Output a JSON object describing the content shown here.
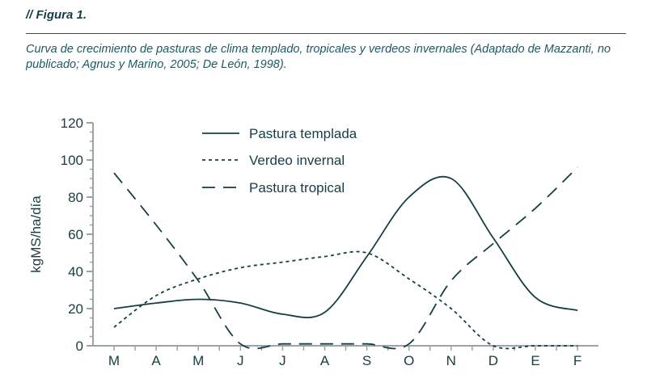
{
  "figure": {
    "label": "// Figura 1.",
    "caption": "Curva de crecimiento de pasturas de clima templado, tropicales y verdeos invernales (Adaptado de Mazzanti, no publicado; Agnus y Marino, 2005; De León, 1998)."
  },
  "chart_data": {
    "type": "line",
    "title": "",
    "xlabel": "",
    "ylabel": "kgMS/ha/día",
    "categories": [
      "M",
      "A",
      "M",
      "J",
      "J",
      "A",
      "S",
      "O",
      "N",
      "D",
      "E",
      "F"
    ],
    "ylim": [
      0,
      120
    ],
    "yticks": [
      0,
      20,
      40,
      60,
      80,
      100,
      120
    ],
    "grid": false,
    "legend": "top-center",
    "colors": {
      "line": "#163d45",
      "axis": "#9aa3a6"
    },
    "series": [
      {
        "name": "Pastura templada",
        "style": "solid",
        "values": [
          20,
          23,
          25,
          23,
          17,
          18,
          48,
          80,
          90,
          58,
          26,
          19
        ]
      },
      {
        "name": "Verdeo invernal",
        "style": "dotted",
        "values": [
          10,
          27,
          36,
          42,
          45,
          48,
          50,
          36,
          20,
          0,
          0,
          0
        ]
      },
      {
        "name": "Pastura tropical",
        "style": "dashed",
        "values": [
          93,
          65,
          35,
          1,
          1,
          1,
          1,
          1,
          35,
          55,
          74,
          96
        ]
      }
    ]
  }
}
